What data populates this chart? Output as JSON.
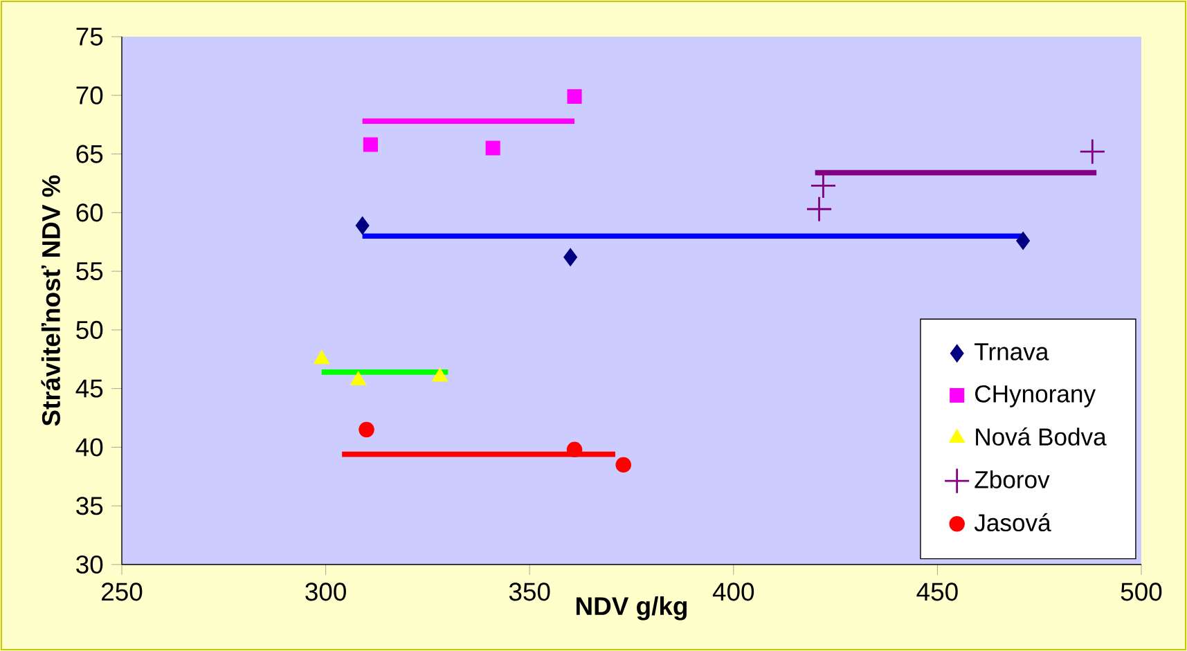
{
  "chart_data": {
    "type": "scatter",
    "xlabel": "NDV g/kg",
    "ylabel": "Stráviteľnosť NDV %",
    "xlim": [
      250,
      500
    ],
    "ylim": [
      30,
      75
    ],
    "xticks": [
      250,
      300,
      350,
      400,
      450,
      500
    ],
    "yticks": [
      30,
      35,
      40,
      45,
      50,
      55,
      60,
      65,
      70,
      75
    ],
    "grid": false,
    "legend": "bottom right",
    "series": [
      {
        "name": "Trnava",
        "color": "#000080",
        "marker": "diamond",
        "x": [
          309,
          360,
          471
        ],
        "values": [
          58.9,
          56.2,
          57.6
        ]
      },
      {
        "name": "CHynorany",
        "color": "#ff00ff",
        "marker": "square",
        "x": [
          311,
          341,
          361
        ],
        "values": [
          65.8,
          65.5,
          69.9
        ]
      },
      {
        "name": "Nová Bodva",
        "color": "#ffff00",
        "marker": "triangle",
        "x": [
          299,
          308,
          328
        ],
        "values": [
          47.5,
          45.7,
          46.0
        ]
      },
      {
        "name": "Zborov",
        "color": "#800080",
        "marker": "cross",
        "x": [
          421,
          422,
          488
        ],
        "values": [
          60.3,
          62.3,
          65.2
        ]
      },
      {
        "name": "Jasová",
        "color": "#ff0000",
        "marker": "circle",
        "x": [
          310,
          361,
          373
        ],
        "values": [
          41.5,
          39.8,
          38.5
        ]
      },
      {
        "type": "line",
        "color": "#0000ff",
        "line_style": "solid",
        "x": [
          309,
          471
        ],
        "values": [
          58.0,
          58.0
        ]
      },
      {
        "type": "line",
        "color": "#ff00ff",
        "line_style": "solid",
        "x": [
          309,
          361
        ],
        "values": [
          67.8,
          67.8
        ]
      },
      {
        "type": "line",
        "color": "#00ff00",
        "line_style": "solid",
        "x": [
          299,
          330
        ],
        "values": [
          46.4,
          46.4
        ]
      },
      {
        "type": "line",
        "color": "#800080",
        "line_style": "solid",
        "x": [
          420,
          489
        ],
        "values": [
          63.4,
          63.4
        ]
      },
      {
        "type": "line",
        "color": "#ff0000",
        "line_style": "solid",
        "x": [
          304,
          371
        ],
        "values": [
          39.4,
          39.4
        ]
      }
    ]
  }
}
